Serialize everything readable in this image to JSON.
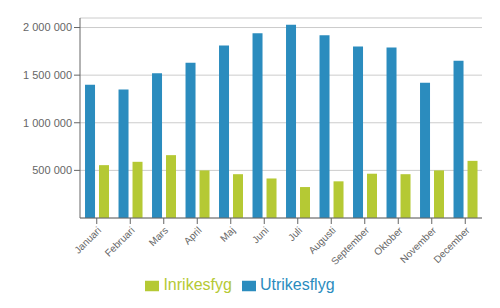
{
  "chart_data": {
    "type": "bar",
    "categories": [
      "Januari",
      "Februari",
      "Mars",
      "April",
      "Maj",
      "Juni",
      "Juli",
      "Augusti",
      "September",
      "Oktober",
      "November",
      "December"
    ],
    "series": [
      {
        "name": "Utrikesflyg",
        "color": "#2b8cbe",
        "values": [
          1400000,
          1350000,
          1520000,
          1630000,
          1810000,
          1940000,
          2030000,
          1920000,
          1800000,
          1790000,
          1420000,
          1650000
        ]
      },
      {
        "name": "Inrikesfyg",
        "color": "#b5c934",
        "values": [
          555000,
          590000,
          660000,
          500000,
          460000,
          415000,
          325000,
          385000,
          465000,
          460000,
          500000,
          600000
        ]
      }
    ],
    "ylim": [
      0,
      2100000
    ],
    "yticks": [
      {
        "value": 500000,
        "label": "500 000"
      },
      {
        "value": 1000000,
        "label": "1 000 000"
      },
      {
        "value": 1500000,
        "label": "1 500 000"
      },
      {
        "value": 2000000,
        "label": "2 000 000"
      }
    ],
    "grid": true,
    "legend": "bottom"
  }
}
